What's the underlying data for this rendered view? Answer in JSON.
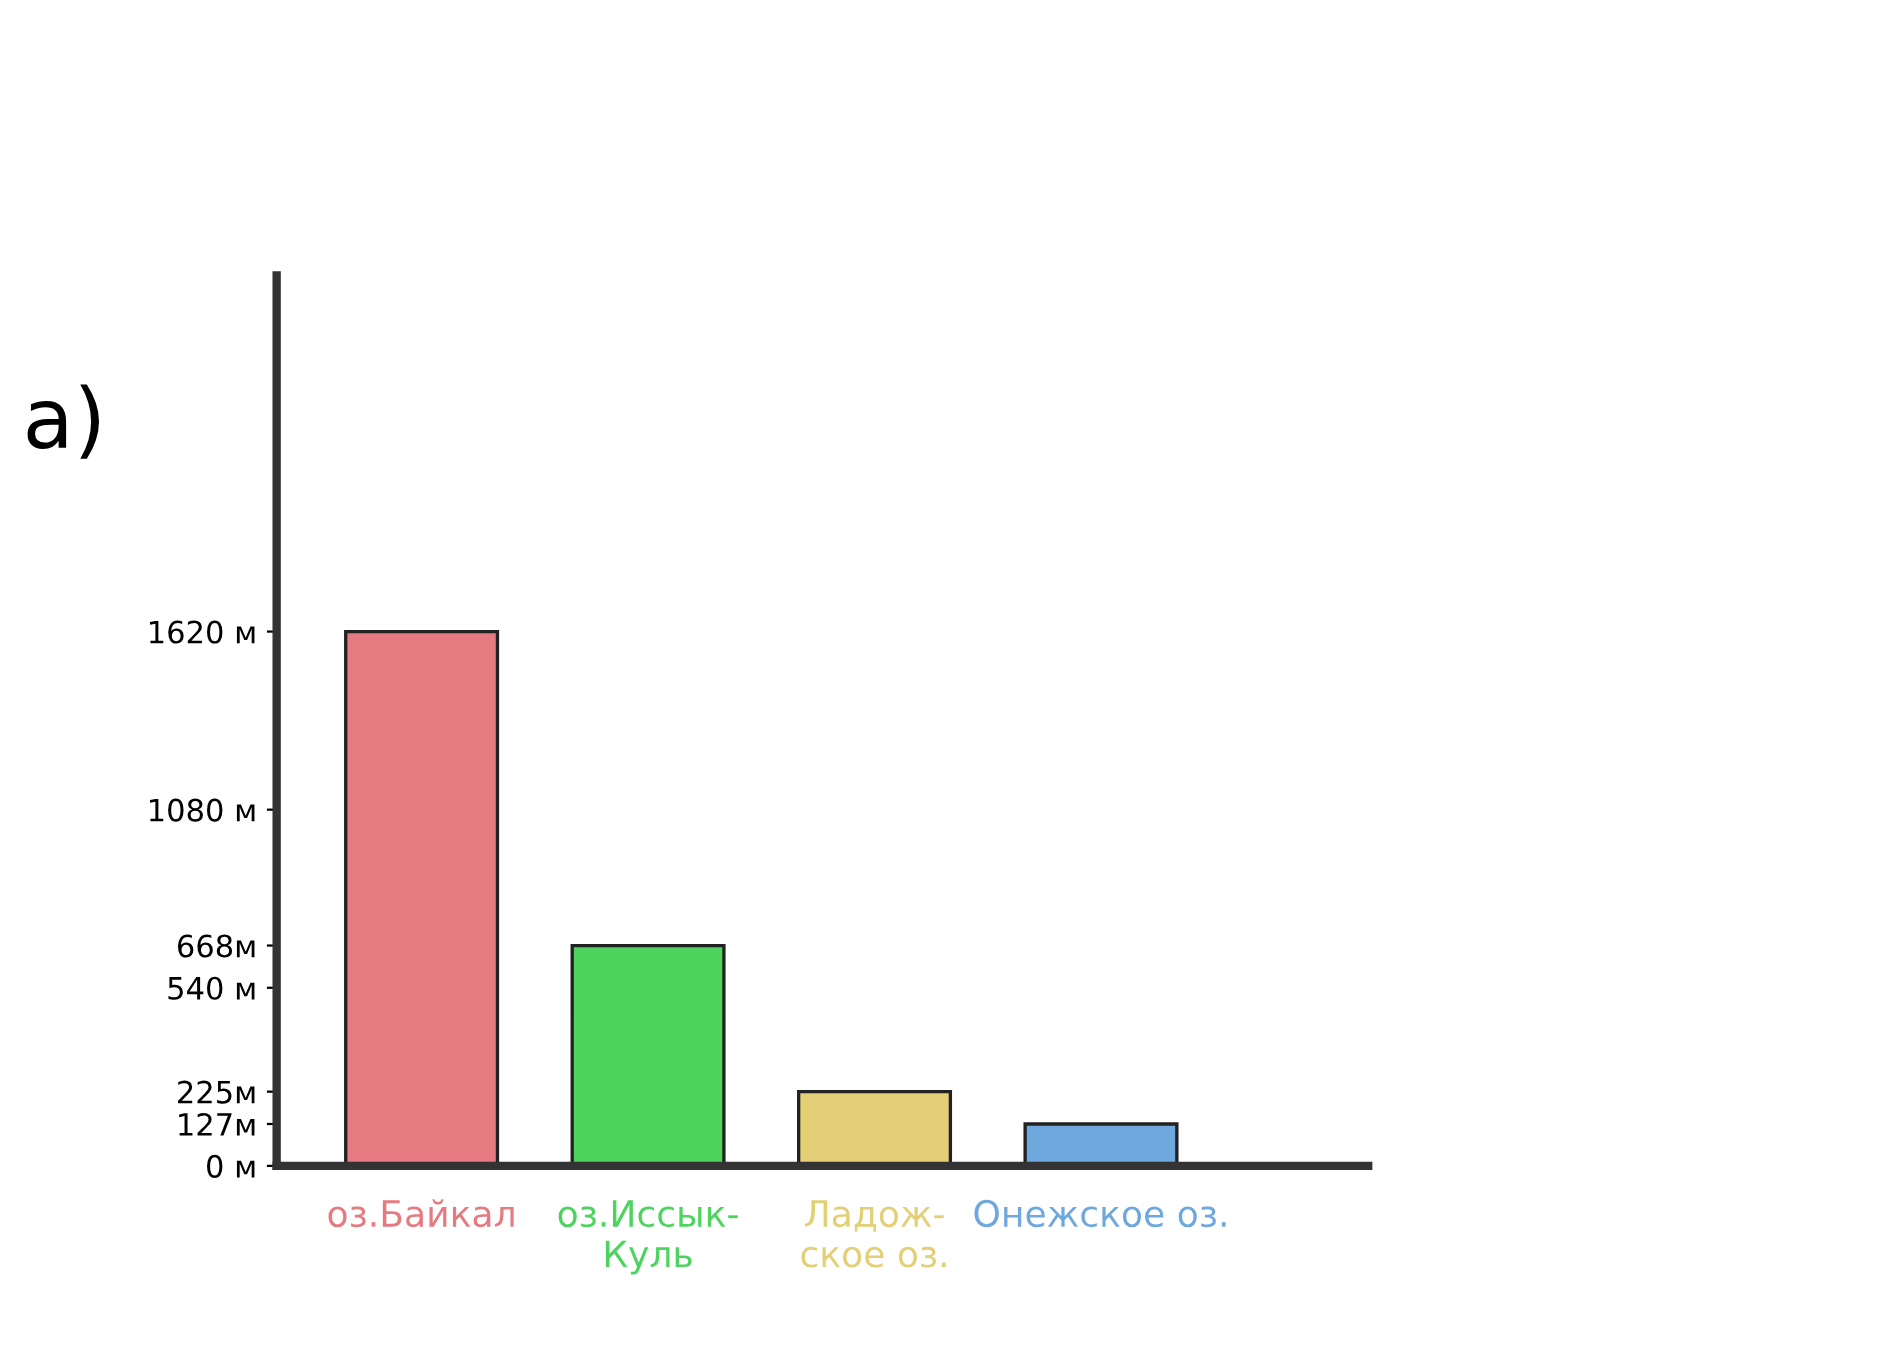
{
  "chart_data": {
    "type": "bar",
    "title": "а)",
    "categories": [
      "оз.Байкал",
      "оз.Иссык-\nКуль",
      "Ладож-\nское оз.",
      "Онежское оз."
    ],
    "values": [
      1620,
      668,
      225,
      127
    ],
    "colors": [
      "#e57b80",
      "#4cd45e",
      "#e3cf75",
      "#6fa8dc"
    ],
    "ylim": [
      0,
      2700
    ],
    "yticks": [
      {
        "value": 0,
        "label": "0 м"
      },
      {
        "value": 127,
        "label": "127м"
      },
      {
        "value": 225,
        "label": "225м"
      },
      {
        "value": 540,
        "label": "540 м"
      },
      {
        "value": 668,
        "label": "668м"
      },
      {
        "value": 1080,
        "label": "1080 м"
      },
      {
        "value": 1620,
        "label": "1620 м"
      }
    ],
    "grid": false,
    "legend": false
  }
}
